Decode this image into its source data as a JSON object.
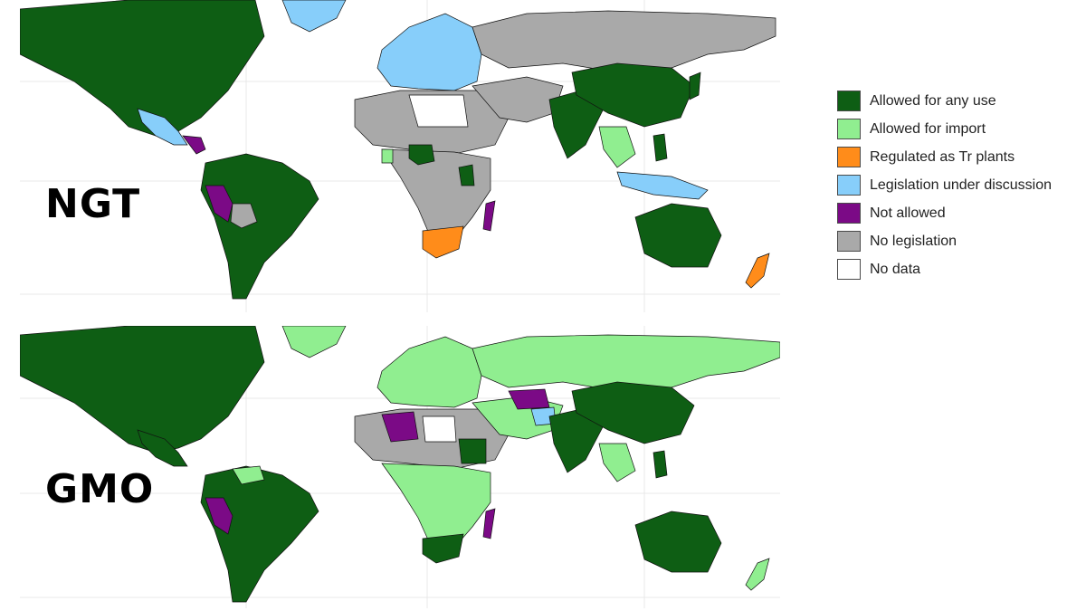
{
  "maps": [
    {
      "id": "ngt",
      "label": "NGT",
      "regions": [
        {
          "name": "north-america",
          "category": "allowed_any_use"
        },
        {
          "name": "greenland",
          "category": "legislation_under_discussion"
        },
        {
          "name": "mexico",
          "category": "legislation_under_discussion"
        },
        {
          "name": "central-america",
          "category": "not_allowed"
        },
        {
          "name": "south-america",
          "category": "allowed_any_use"
        },
        {
          "name": "peru",
          "category": "not_allowed"
        },
        {
          "name": "bolivia",
          "category": "no_legislation"
        },
        {
          "name": "europe",
          "category": "legislation_under_discussion"
        },
        {
          "name": "russia",
          "category": "no_legislation"
        },
        {
          "name": "north-africa",
          "category": "no_legislation"
        },
        {
          "name": "libya-egypt",
          "category": "no_data"
        },
        {
          "name": "central-africa",
          "category": "no_legislation"
        },
        {
          "name": "nigeria",
          "category": "allowed_any_use"
        },
        {
          "name": "ghana",
          "category": "allowed_for_import"
        },
        {
          "name": "kenya",
          "category": "allowed_any_use"
        },
        {
          "name": "south-africa",
          "category": "regulated_tr_plants"
        },
        {
          "name": "madagascar",
          "category": "not_allowed"
        },
        {
          "name": "middle-east",
          "category": "no_legislation"
        },
        {
          "name": "india",
          "category": "allowed_any_use"
        },
        {
          "name": "china",
          "category": "allowed_any_use"
        },
        {
          "name": "japan",
          "category": "allowed_any_use"
        },
        {
          "name": "southeast-asia",
          "category": "allowed_for_import"
        },
        {
          "name": "indonesia",
          "category": "legislation_under_discussion"
        },
        {
          "name": "philippines",
          "category": "allowed_any_use"
        },
        {
          "name": "australia",
          "category": "allowed_any_use"
        },
        {
          "name": "new-zealand",
          "category": "regulated_tr_plants"
        }
      ]
    },
    {
      "id": "gmo",
      "label": "GMO",
      "regions": [
        {
          "name": "north-america",
          "category": "allowed_any_use"
        },
        {
          "name": "greenland",
          "category": "allowed_for_import"
        },
        {
          "name": "mexico",
          "category": "allowed_any_use"
        },
        {
          "name": "south-america",
          "category": "allowed_any_use"
        },
        {
          "name": "peru",
          "category": "not_allowed"
        },
        {
          "name": "venezuela",
          "category": "allowed_for_import"
        },
        {
          "name": "europe",
          "category": "allowed_for_import"
        },
        {
          "name": "russia",
          "category": "allowed_for_import"
        },
        {
          "name": "algeria",
          "category": "not_allowed"
        },
        {
          "name": "north-africa",
          "category": "no_legislation"
        },
        {
          "name": "libya",
          "category": "no_data"
        },
        {
          "name": "central-africa",
          "category": "allowed_for_import"
        },
        {
          "name": "sudan",
          "category": "allowed_any_use"
        },
        {
          "name": "southern-africa",
          "category": "allowed_any_use"
        },
        {
          "name": "madagascar",
          "category": "not_allowed"
        },
        {
          "name": "central-asia",
          "category": "not_allowed"
        },
        {
          "name": "afghanistan",
          "category": "legislation_under_discussion"
        },
        {
          "name": "middle-east",
          "category": "allowed_for_import"
        },
        {
          "name": "india",
          "category": "allowed_any_use"
        },
        {
          "name": "china",
          "category": "allowed_any_use"
        },
        {
          "name": "southeast-asia",
          "category": "allowed_for_import"
        },
        {
          "name": "philippines",
          "category": "allowed_any_use"
        },
        {
          "name": "australia",
          "category": "allowed_any_use"
        },
        {
          "name": "new-zealand",
          "category": "allowed_for_import"
        }
      ]
    }
  ],
  "legend": {
    "items": [
      {
        "key": "allowed_any_use",
        "label": "Allowed for any use",
        "color": "#0e5e14"
      },
      {
        "key": "allowed_for_import",
        "label": "Allowed for import",
        "color": "#90ee90"
      },
      {
        "key": "regulated_tr_plants",
        "label": "Regulated as Tr plants",
        "color": "#ff8c1a"
      },
      {
        "key": "legislation_under_discussion",
        "label": "Legislation under discussion",
        "color": "#87cefa"
      },
      {
        "key": "not_allowed",
        "label": "Not allowed",
        "color": "#7b0a86"
      },
      {
        "key": "no_legislation",
        "label": "No legislation",
        "color": "#a9a9a9"
      },
      {
        "key": "no_data",
        "label": "No data",
        "color": "#ffffff"
      }
    ]
  }
}
